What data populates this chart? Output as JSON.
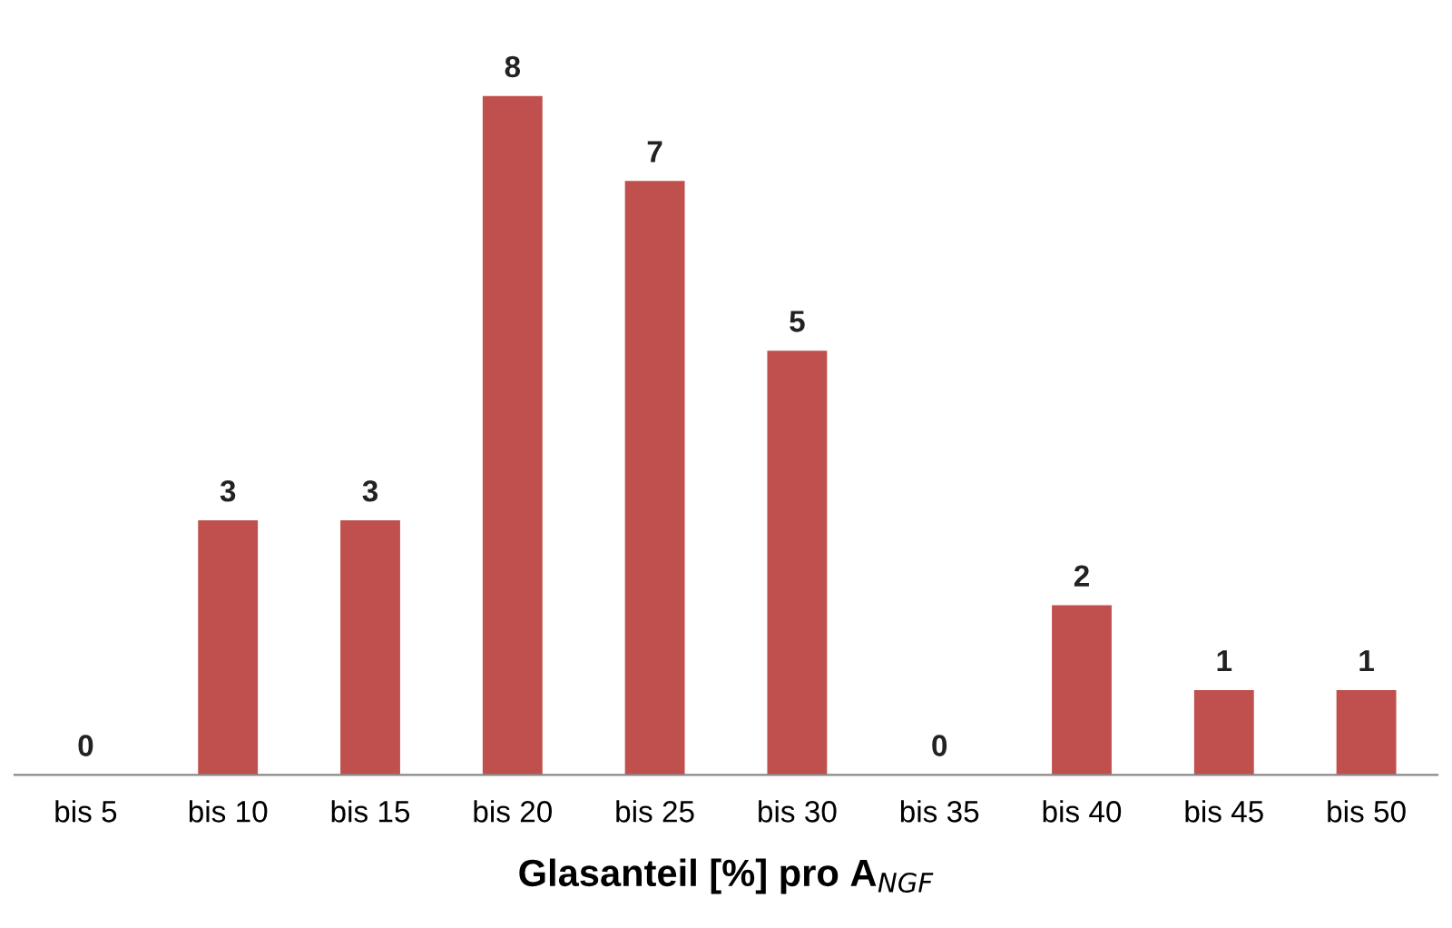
{
  "chart_data": {
    "type": "bar",
    "xlabel": "Glasanteil [%] pro A$_{NGF}$",
    "categories": [
      "bis 5",
      "bis 10",
      "bis 15",
      "bis 20",
      "bis 25",
      "bis 30",
      "bis 35",
      "bis 40",
      "bis 45",
      "bis 50"
    ],
    "values": [
      0,
      3,
      3,
      8,
      7,
      5,
      0,
      2,
      1,
      1
    ],
    "color": "#c0504d",
    "data_labels": true,
    "tick_labels": "x",
    "grid": false,
    "legend": false
  }
}
